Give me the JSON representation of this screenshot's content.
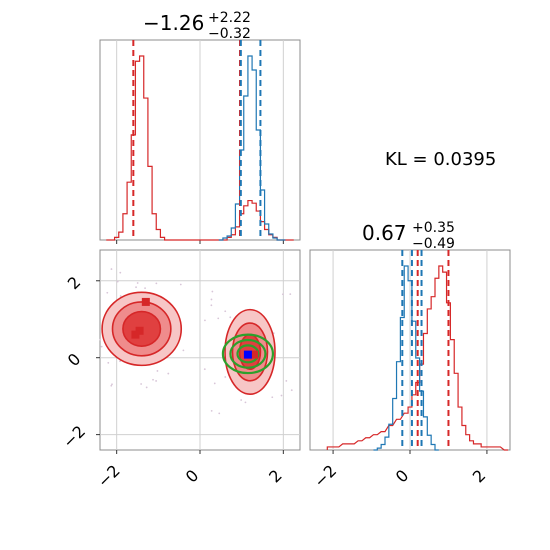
{
  "chart_data": [
    {
      "type": "line",
      "panel": "top-left",
      "subtype": "histogram",
      "title": {
        "main": "−1.26",
        "sup": "+2.22",
        "sub": "−0.32"
      },
      "xlim": [
        -2.4,
        2.4
      ],
      "grid": true,
      "series": [
        {
          "color": "#d62728",
          "bin_centers": [
            -2.2,
            -2.1,
            -2.0,
            -1.9,
            -1.8,
            -1.7,
            -1.6,
            -1.5,
            -1.4,
            -1.3,
            -1.2,
            -1.1,
            -1.0,
            -0.9,
            -0.8,
            -0.7,
            -0.6,
            -0.5,
            -0.4,
            -0.3,
            -0.2,
            -0.1,
            0.0,
            0.1,
            0.2,
            0.3,
            0.4,
            0.5,
            0.6,
            0.7,
            0.8,
            0.9,
            1.0,
            1.1,
            1.2,
            1.3,
            1.4,
            1.5,
            1.6,
            1.7,
            1.8,
            1.9,
            2.0,
            2.1,
            2.2
          ],
          "counts": [
            0,
            0,
            1,
            3,
            10,
            22,
            40,
            68,
            70,
            54,
            28,
            10,
            4,
            1,
            0,
            0,
            0,
            0,
            0,
            0,
            0,
            0,
            0,
            0,
            0,
            0,
            0,
            0,
            0,
            1,
            2,
            5,
            10,
            13,
            15,
            14,
            11,
            7,
            4,
            2,
            1,
            0,
            0,
            0,
            0
          ]
        },
        {
          "color": "#1f77b4",
          "bin_centers": [
            0.5,
            0.6,
            0.7,
            0.8,
            0.9,
            1.0,
            1.1,
            1.2,
            1.3,
            1.4,
            1.5,
            1.6,
            1.7,
            1.8,
            1.9,
            2.0
          ],
          "counts": [
            0,
            1,
            2,
            6,
            18,
            45,
            72,
            92,
            85,
            55,
            25,
            8,
            3,
            1,
            0,
            0
          ]
        }
      ],
      "vlines": [
        {
          "color": "#d62728",
          "values": [
            -1.6,
            0.96
          ]
        },
        {
          "color": "#1f77b4",
          "values": [
            0.98,
            1.45
          ]
        }
      ]
    },
    {
      "type": "scatter",
      "panel": "bottom-left",
      "subtype": "2d-density-contour",
      "xlim": [
        -2.4,
        2.4
      ],
      "ylim": [
        -2.4,
        2.8
      ],
      "x_ticks": [
        "−2",
        "0",
        "2"
      ],
      "y_ticks": [
        "−2",
        "0",
        "2"
      ],
      "grid": true,
      "red_clusters": [
        {
          "center": [
            -1.4,
            0.75
          ],
          "levels": [
            [
              0.95,
              0.95
            ],
            [
              0.7,
              0.7
            ],
            [
              0.45,
              0.45
            ]
          ]
        },
        {
          "center": [
            1.2,
            0.15
          ],
          "levels": [
            [
              0.6,
              1.1
            ],
            [
              0.42,
              0.75
            ],
            [
              0.25,
              0.45
            ]
          ]
        }
      ],
      "green_contours": {
        "center": [
          1.15,
          0.1
        ],
        "radii": [
          [
            0.6,
            0.5
          ],
          [
            0.42,
            0.36
          ],
          [
            0.25,
            0.22
          ]
        ]
      },
      "red_squares": [
        [
          -1.3,
          1.45
        ],
        [
          -1.45,
          0.7
        ],
        [
          -1.55,
          0.6
        ],
        [
          1.3,
          0.08
        ]
      ],
      "blue_squares": [
        [
          1.15,
          0.08
        ]
      ],
      "colors": {
        "red": "#d62728",
        "red_fill": "#f4a6a6",
        "green": "#2ca02c",
        "blue": "#0000ff"
      }
    },
    {
      "type": "line",
      "panel": "bottom-right",
      "subtype": "histogram",
      "title": {
        "main": "0.67",
        "sup": "+0.35",
        "sub": "−0.49"
      },
      "kl_text": "KL = 0.0395",
      "xlim": [
        -2.6,
        2.6
      ],
      "x_ticks": [
        "−2",
        "0",
        "2"
      ],
      "grid": true,
      "series": [
        {
          "color": "#d62728",
          "bin_centers": [
            -2.1,
            -1.9,
            -1.7,
            -1.5,
            -1.3,
            -1.1,
            -0.9,
            -0.7,
            -0.5,
            -0.3,
            -0.1,
            0.0,
            0.1,
            0.2,
            0.3,
            0.4,
            0.5,
            0.6,
            0.7,
            0.8,
            0.9,
            1.0,
            1.1,
            1.2,
            1.3,
            1.4,
            1.5,
            1.6,
            1.7,
            1.8,
            1.9,
            2.0,
            2.1,
            2.3,
            2.5
          ],
          "counts": [
            1,
            1,
            2,
            2,
            3,
            4,
            5,
            6,
            8,
            10,
            12,
            14,
            18,
            22,
            28,
            38,
            46,
            50,
            56,
            60,
            58,
            48,
            36,
            25,
            14,
            8,
            5,
            3,
            2,
            2,
            1,
            1,
            1,
            1,
            0
          ]
        },
        {
          "color": "#1f77b4",
          "bin_centers": [
            -0.9,
            -0.8,
            -0.7,
            -0.6,
            -0.5,
            -0.4,
            -0.3,
            -0.2,
            -0.1,
            0.0,
            0.1,
            0.2,
            0.3,
            0.4,
            0.5,
            0.6,
            0.7
          ],
          "counts": [
            0,
            1,
            3,
            7,
            14,
            28,
            48,
            72,
            100,
            92,
            70,
            50,
            32,
            18,
            8,
            3,
            0
          ]
        }
      ],
      "vlines": [
        {
          "color": "#d62728",
          "values": [
            0.2,
            1.0
          ]
        },
        {
          "color": "#1f77b4",
          "values": [
            -0.2,
            0.05,
            0.3
          ]
        }
      ]
    }
  ]
}
